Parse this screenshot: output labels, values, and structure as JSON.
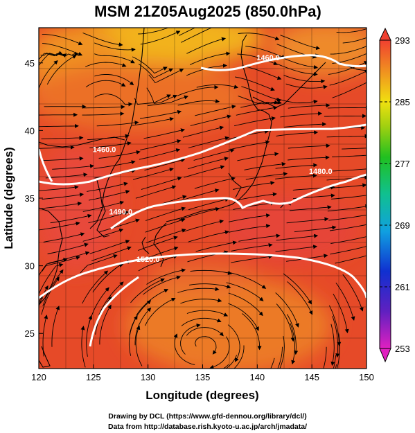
{
  "title": "MSM 21Z05Aug2025 (850.0hPa)",
  "xlabel": "Longitude (degrees)",
  "ylabel": "Latitude  (degrees)",
  "x_ticks": [
    "120",
    "125",
    "130",
    "135",
    "140",
    "145",
    "150"
  ],
  "y_ticks": [
    "25",
    "30",
    "35",
    "40",
    "45"
  ],
  "colorbar": {
    "min": 253,
    "max": 293,
    "ticks": [
      "293",
      "285",
      "277",
      "269",
      "261",
      "253"
    ]
  },
  "contours": [
    {
      "label": "1460.0",
      "lon": 141.0,
      "lat": 45.2
    },
    {
      "label": "1460.0",
      "lon": 126.0,
      "lat": 38.4
    },
    {
      "label": "1480.0",
      "lon": 145.8,
      "lat": 36.8
    },
    {
      "label": "1490.0",
      "lon": 127.5,
      "lat": 33.8
    },
    {
      "label": "1520.0",
      "lon": 130.0,
      "lat": 30.3
    }
  ],
  "credits": {
    "line1": "Drawing by DCL (https://www.gfd-dennou.org/library/dcl/)",
    "line2": "Data from http://database.rish.kyoto-u.ac.jp/arch/jmadata/"
  },
  "chart_data": {
    "type": "heatmap",
    "title": "MSM 21Z05Aug2025 (850.0hPa)",
    "xlabel": "Longitude (degrees)",
    "ylabel": "Latitude  (degrees)",
    "xlim": [
      120,
      150
    ],
    "ylim": [
      22.4,
      47.6
    ],
    "x_ticks": [
      120,
      125,
      130,
      135,
      140,
      145,
      150
    ],
    "y_ticks": [
      25,
      30,
      35,
      40,
      45
    ],
    "color_range": [
      253,
      293
    ],
    "colorbar_ticks": [
      293,
      285,
      277,
      269,
      261,
      253
    ],
    "contour_levels": [
      1460.0,
      1460.0,
      1480.0,
      1490.0,
      1520.0
    ],
    "overlay": "streamlines"
  }
}
